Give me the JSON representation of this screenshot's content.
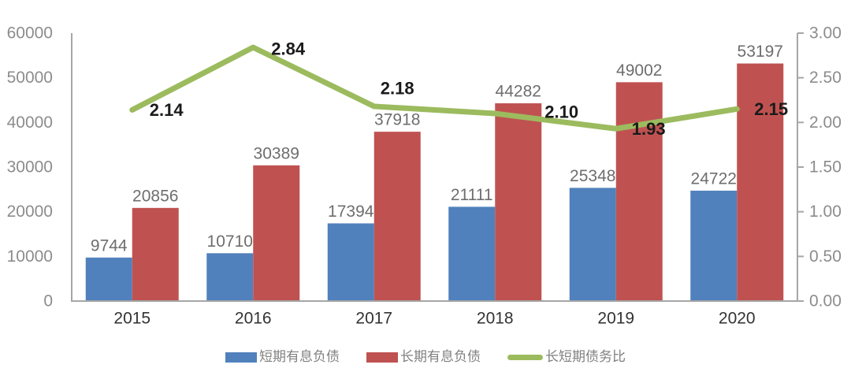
{
  "chart_data": {
    "type": "bar",
    "subtype": "grouped-bars-with-line-overlay",
    "categories": [
      "2015",
      "2016",
      "2017",
      "2018",
      "2019",
      "2020"
    ],
    "series": [
      {
        "name": "短期有息负债",
        "kind": "bar",
        "axis": "left",
        "color": "#5081BC",
        "values": [
          9744,
          10710,
          17394,
          21111,
          25348,
          24722
        ]
      },
      {
        "name": "长期有息负债",
        "kind": "bar",
        "axis": "left",
        "color": "#BF5251",
        "values": [
          20856,
          30389,
          37918,
          44282,
          49002,
          53197
        ]
      },
      {
        "name": "长短期债务比",
        "kind": "line",
        "axis": "right",
        "color": "#9CBB5E",
        "values": [
          2.14,
          2.84,
          2.18,
          2.1,
          1.93,
          2.15
        ],
        "value_labels": [
          "2.14",
          "2.84",
          "2.18",
          "2.10",
          "1.93",
          "2.15"
        ]
      }
    ],
    "left_axis": {
      "min": 0,
      "max": 60000,
      "step": 10000,
      "tick_labels_top_to_bottom": [
        "60000",
        "50000",
        "40000",
        "30000",
        "20000",
        "10000",
        "0"
      ]
    },
    "right_axis": {
      "min": 0,
      "max": 3,
      "step": 0.5,
      "tick_labels_top_to_bottom": [
        "3.00",
        "2.50",
        "2.00",
        "1.50",
        "1.00",
        "0.50",
        "0.00"
      ]
    },
    "title": "",
    "grid": false,
    "legend_position": "bottom",
    "background": "#FFFFFF",
    "axis_line_color": "#A6A6A6",
    "text_colors": {
      "axis_ticks": "#8C8C8C",
      "bar_values": "#6E6E6E",
      "categories": "#333333",
      "line_values": "#1A1A1A",
      "legend": "#808080"
    }
  }
}
